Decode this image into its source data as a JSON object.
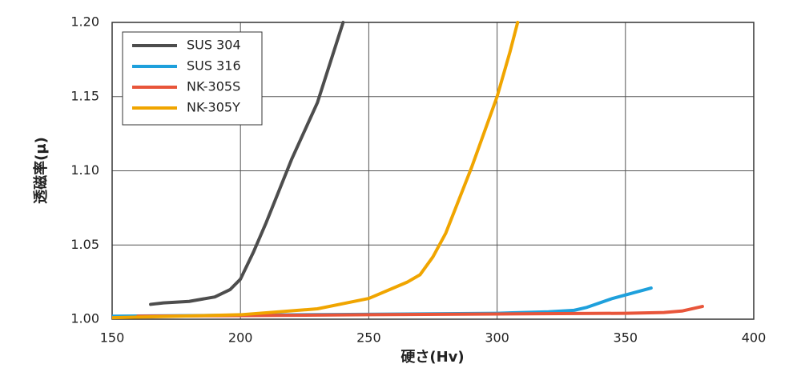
{
  "chart_data": {
    "type": "line",
    "x_label": "硬さ(Hv)",
    "y_label": "透磁率(μ)",
    "xlim": [
      150,
      400
    ],
    "xticks": [
      150,
      200,
      250,
      300,
      350,
      400
    ],
    "ylim": [
      1.0,
      1.2
    ],
    "yticks": [
      {
        "value": 1.0,
        "label": "1.00"
      },
      {
        "value": 1.05,
        "label": "1.05"
      },
      {
        "value": 1.1,
        "label": "1.10"
      },
      {
        "value": 1.15,
        "label": "1.15"
      },
      {
        "value": 1.2,
        "label": "1.20"
      }
    ],
    "grid": true,
    "legend": "upper left",
    "series": [
      {
        "name": "SUS 304",
        "color": "#4d4d4d",
        "x": [
          165,
          170,
          180,
          190,
          196,
          200,
          205,
          210,
          220,
          230,
          240
        ],
        "values": [
          1.01,
          1.011,
          1.012,
          1.015,
          1.02,
          1.027,
          1.045,
          1.065,
          1.108,
          1.146,
          1.2
        ]
      },
      {
        "name": "SUS 316",
        "color": "#1ea0dc",
        "x": [
          150,
          300,
          320,
          330,
          335,
          345,
          360
        ],
        "values": [
          1.002,
          1.004,
          1.005,
          1.006,
          1.008,
          1.014,
          1.021
        ]
      },
      {
        "name": "NK-305S",
        "color": "#e8553a",
        "x": [
          160,
          250,
          300,
          350,
          365,
          372,
          380
        ],
        "values": [
          1.002,
          1.003,
          1.0035,
          1.004,
          1.0045,
          1.0055,
          1.0086
        ]
      },
      {
        "name": "NK-305Y",
        "color": "#f0a500",
        "x": [
          150,
          200,
          230,
          250,
          265,
          270,
          275,
          280,
          290,
          300,
          305,
          308
        ],
        "values": [
          1.001,
          1.003,
          1.007,
          1.014,
          1.025,
          1.03,
          1.042,
          1.058,
          1.102,
          1.15,
          1.18,
          1.2
        ]
      }
    ]
  }
}
